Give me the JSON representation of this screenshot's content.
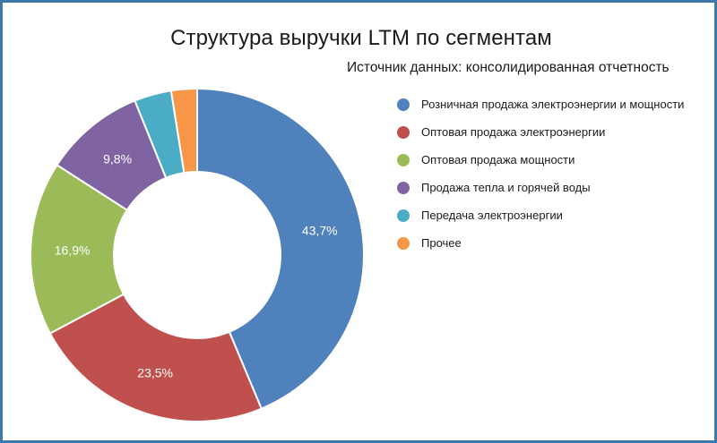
{
  "chart_data": {
    "type": "pie",
    "variant": "donut",
    "title": "Структура выручки LTM по сегментам",
    "subtitle": "Источник данных: консолидированная отчетность",
    "legend_position": "right",
    "start_angle_deg": 0,
    "direction": "clockwise",
    "slices": [
      {
        "name": "Розничная продажа электроэнергии и мощности",
        "value": 43.7,
        "label": "43,7%",
        "color": "#4f81bd"
      },
      {
        "name": "Оптовая продажа электроэнергии",
        "value": 23.5,
        "label": "23,5%",
        "color": "#c0504d"
      },
      {
        "name": "Оптовая продажа мощности",
        "value": 16.9,
        "label": "16,9%",
        "color": "#9bbb59"
      },
      {
        "name": "Продажа тепла и горячей воды",
        "value": 9.8,
        "label": "9,8%",
        "color": "#8064a2"
      },
      {
        "name": "Передача электроэнергии",
        "value": 3.6,
        "label": "",
        "color": "#4bacc6"
      },
      {
        "name": "Прочее",
        "value": 2.5,
        "label": "",
        "color": "#f79646"
      }
    ]
  }
}
